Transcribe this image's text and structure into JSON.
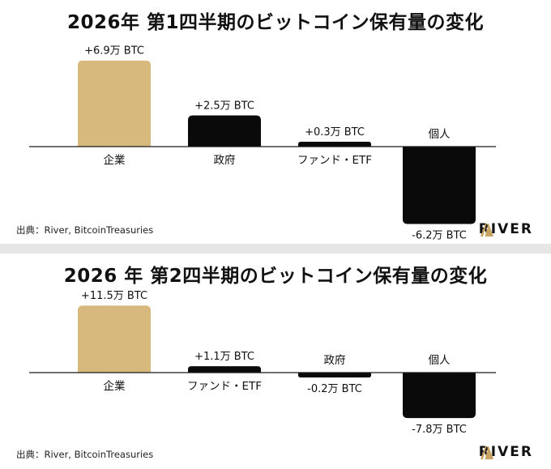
{
  "colors": {
    "gold": "#d7b97e",
    "black": "#0a0a0a",
    "axis": "#1a1a1a"
  },
  "chart_data": [
    {
      "type": "bar",
      "title": "2026年 第1四半期のビットコイン保有量の変化",
      "unit": "万 BTC",
      "categories": [
        "企業",
        "政府",
        "ファンド・ETF",
        "個人"
      ],
      "values": [
        6.9,
        2.5,
        0.3,
        -6.2
      ],
      "value_labels": [
        "+6.9万 BTC",
        "+2.5万 BTC",
        "+0.3万 BTC",
        "-6.2万 BTC"
      ],
      "bar_colors": [
        "gold",
        "black",
        "black",
        "black"
      ],
      "source": "出典：River, BitcoinTreasuries",
      "logo_text": "RIVER"
    },
    {
      "type": "bar",
      "title": "2026 年 第2四半期のビットコイン保有量の変化",
      "unit": "万 BTC",
      "categories": [
        "企業",
        "ファンド・ETF",
        "政府",
        "個人"
      ],
      "values": [
        11.5,
        1.1,
        -0.2,
        -7.8
      ],
      "value_labels": [
        "+11.5万 BTC",
        "+1.1万 BTC",
        "-0.2万 BTC",
        "-7.8万 BTC"
      ],
      "bar_colors": [
        "gold",
        "black",
        "black",
        "black"
      ],
      "source": "出典：River, BitcoinTreasuries",
      "logo_text": "RIVER"
    }
  ]
}
